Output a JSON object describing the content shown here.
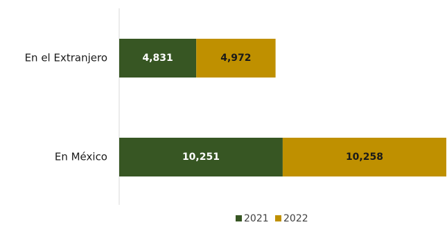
{
  "chart_data": {
    "type": "stacked-barh",
    "categories": [
      "En el Extranjero",
      "En México"
    ],
    "series": [
      {
        "name": "2021",
        "color": "#375623",
        "values": [
          4831,
          10251
        ],
        "value_labels": [
          "4,831",
          "10,251"
        ],
        "label_color": "#ffffff"
      },
      {
        "name": "2022",
        "color": "#bf9000",
        "values": [
          4972,
          10258
        ],
        "value_labels": [
          "4,972",
          "10,258"
        ],
        "label_color": "#1a1a1a"
      }
    ]
  }
}
